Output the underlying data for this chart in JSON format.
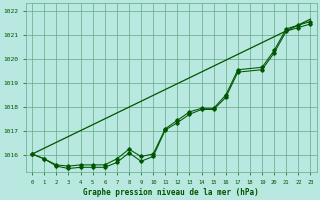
{
  "title": "Graphe pression niveau de la mer (hPa)",
  "background_color": "#b8e8e0",
  "grid_color": "#66aa88",
  "line_color": "#005500",
  "xlim": [
    -0.5,
    23.5
  ],
  "ylim": [
    1015.3,
    1022.3
  ],
  "xticks": [
    0,
    1,
    2,
    3,
    4,
    5,
    6,
    7,
    8,
    9,
    10,
    11,
    12,
    13,
    14,
    15,
    16,
    17,
    18,
    19,
    20,
    21,
    22,
    23
  ],
  "yticks": [
    1016,
    1017,
    1018,
    1019,
    1020,
    1021,
    1022
  ],
  "smooth_line": {
    "x": [
      0,
      23
    ],
    "y": [
      1016.05,
      1021.65
    ]
  },
  "line1": {
    "x": [
      0,
      1,
      2,
      3,
      4,
      5,
      6,
      7,
      8,
      9,
      10,
      11,
      12,
      13,
      14,
      15,
      16,
      17,
      19,
      20,
      21,
      22,
      23
    ],
    "y": [
      1016.05,
      1015.85,
      1015.6,
      1015.55,
      1015.6,
      1015.6,
      1015.6,
      1015.85,
      1016.25,
      1015.95,
      1016.05,
      1017.1,
      1017.45,
      1017.8,
      1017.95,
      1017.95,
      1018.5,
      1019.55,
      1019.65,
      1020.35,
      1021.25,
      1021.4,
      1021.55
    ]
  },
  "line2": {
    "x": [
      0,
      1,
      2,
      3,
      4,
      5,
      6,
      7,
      8,
      9,
      10,
      11,
      12,
      13,
      14,
      15,
      16,
      17,
      19,
      20,
      21,
      22,
      23
    ],
    "y": [
      1016.05,
      1015.85,
      1015.55,
      1015.45,
      1015.5,
      1015.5,
      1015.5,
      1015.7,
      1016.1,
      1015.75,
      1015.95,
      1017.05,
      1017.35,
      1017.7,
      1017.9,
      1017.9,
      1018.4,
      1019.45,
      1019.55,
      1020.25,
      1021.15,
      1021.3,
      1021.45
    ]
  },
  "line3": {
    "x": [
      0,
      23
    ],
    "y": [
      1016.05,
      1021.65
    ]
  }
}
